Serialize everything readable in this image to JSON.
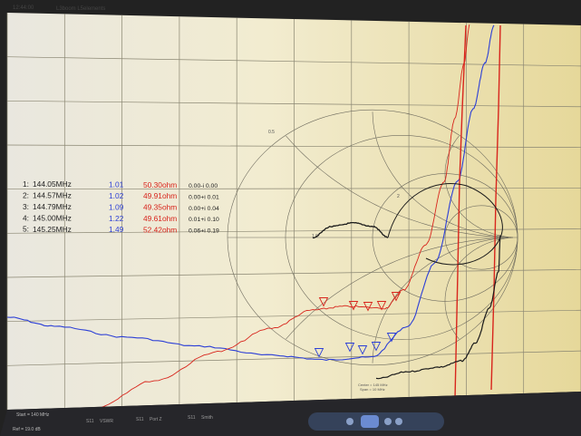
{
  "header": {
    "time": "12:44:00",
    "antenna": "L3boom L5elements"
  },
  "markers": [
    {
      "id": "1:",
      "freq": "144.05MHz",
      "vswr": "1.01",
      "z": "50.30ohm",
      "refl": "0.00-i 0.00"
    },
    {
      "id": "2:",
      "freq": "144.57MHz",
      "vswr": "1.02",
      "z": "49.91ohm",
      "refl": "0.00+i 0.01"
    },
    {
      "id": "3:",
      "freq": "144.79MHz",
      "vswr": "1.09",
      "z": "49.35ohm",
      "refl": "0.00+i 0.04"
    },
    {
      "id": "4:",
      "freq": "145.00MHz",
      "vswr": "1.22",
      "z": "49.61ohm",
      "refl": "0.01+i 0.10"
    },
    {
      "id": "5:",
      "freq": "145.25MHz",
      "vswr": "1.49",
      "z": "52.42ohm",
      "refl": "0.06+i 0.19"
    }
  ],
  "smith_labels": {
    "top": "0.5",
    "center": "1.0",
    "left": "0.5",
    "right": "2"
  },
  "footer": {
    "start": "Start = 140 MHz",
    "center": "Center = 145 MHz",
    "span": "Span = 10 MHz",
    "ref": "Ref = 19.0 dB",
    "legend": [
      {
        "label": "S11",
        "name": "VSWR"
      },
      {
        "label": "S11",
        "name": "Port Z"
      },
      {
        "label": "S11",
        "name": "Smith"
      }
    ]
  },
  "colors": {
    "background": "#f0e9c5",
    "grid": "#8a8672",
    "vswr_trace": "#2c3fd6",
    "impedance_trace": "#d8251c",
    "smith_trace": "#1b1b1b",
    "reflection_text": "#222222"
  }
}
